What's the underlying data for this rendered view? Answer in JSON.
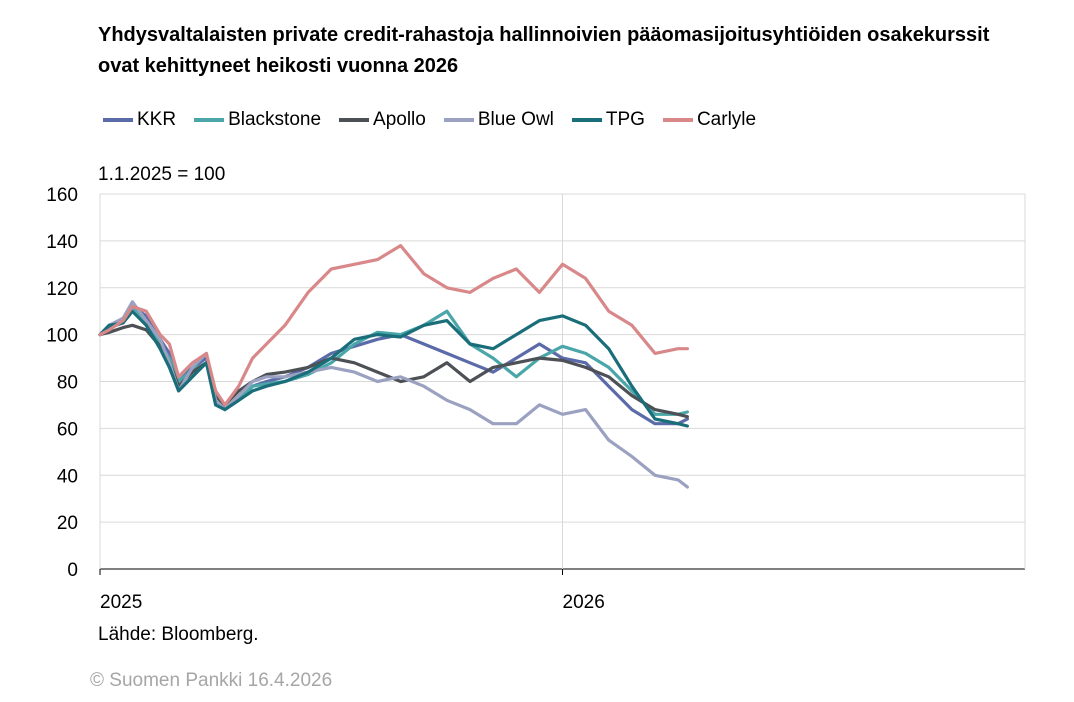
{
  "chart_data": {
    "type": "line",
    "title": "Yhdysvaltalaisten private credit-rahastoja hallinnoivien pääomasijoitusyhtiöiden osakekurssit ovat kehittyneet heikosti vuonna 2026",
    "ylabel": "1.1.2025 = 100",
    "xlabel": "",
    "ylim": [
      0,
      160
    ],
    "yticks": [
      0,
      20,
      40,
      60,
      80,
      100,
      120,
      140,
      160
    ],
    "x_tick_labels": [
      "2025",
      "2026"
    ],
    "x_range_years": [
      2025.0,
      2027.0
    ],
    "grid": true,
    "legend_position": "top",
    "source": "Lähde: Bloomberg.",
    "copyright": "© Suomen Pankki 16.4.2026",
    "series": [
      {
        "name": "KKR",
        "color": "#5b6aa8",
        "x": [
          2025.0,
          2025.02,
          2025.05,
          2025.07,
          2025.1,
          2025.13,
          2025.15,
          2025.17,
          2025.2,
          2025.23,
          2025.25,
          2025.27,
          2025.3,
          2025.33,
          2025.36,
          2025.4,
          2025.45,
          2025.5,
          2025.55,
          2025.6,
          2025.65,
          2025.7,
          2025.75,
          2025.8,
          2025.85,
          2025.9,
          2025.95,
          2026.0,
          2026.05,
          2026.1,
          2026.15,
          2026.2,
          2026.25,
          2026.27
        ],
        "y": [
          100,
          103,
          105,
          112,
          108,
          98,
          92,
          80,
          86,
          90,
          75,
          68,
          72,
          78,
          80,
          82,
          86,
          92,
          95,
          98,
          100,
          96,
          92,
          88,
          84,
          90,
          96,
          90,
          88,
          78,
          68,
          62,
          62,
          64
        ]
      },
      {
        "name": "Blackstone",
        "color": "#4aa6a8",
        "x": [
          2025.0,
          2025.02,
          2025.05,
          2025.07,
          2025.1,
          2025.13,
          2025.15,
          2025.17,
          2025.2,
          2025.23,
          2025.25,
          2025.27,
          2025.3,
          2025.33,
          2025.36,
          2025.4,
          2025.45,
          2025.5,
          2025.55,
          2025.6,
          2025.65,
          2025.7,
          2025.75,
          2025.8,
          2025.85,
          2025.9,
          2025.95,
          2026.0,
          2026.05,
          2026.1,
          2026.15,
          2026.2,
          2026.25,
          2026.27
        ],
        "y": [
          100,
          104,
          106,
          112,
          106,
          96,
          90,
          80,
          85,
          88,
          72,
          68,
          72,
          78,
          79,
          80,
          83,
          88,
          96,
          101,
          100,
          104,
          110,
          96,
          90,
          82,
          90,
          95,
          92,
          86,
          76,
          66,
          66,
          67
        ]
      },
      {
        "name": "Apollo",
        "color": "#4d5156",
        "x": [
          2025.0,
          2025.02,
          2025.05,
          2025.07,
          2025.1,
          2025.13,
          2025.15,
          2025.17,
          2025.2,
          2025.23,
          2025.25,
          2025.27,
          2025.3,
          2025.33,
          2025.36,
          2025.4,
          2025.45,
          2025.5,
          2025.55,
          2025.6,
          2025.65,
          2025.7,
          2025.75,
          2025.8,
          2025.85,
          2025.9,
          2025.95,
          2026.0,
          2026.05,
          2026.1,
          2026.15,
          2026.2,
          2026.25,
          2026.27
        ],
        "y": [
          100,
          101,
          103,
          104,
          102,
          95,
          88,
          78,
          84,
          88,
          74,
          70,
          76,
          80,
          83,
          84,
          86,
          90,
          88,
          84,
          80,
          82,
          88,
          80,
          86,
          88,
          90,
          89,
          86,
          82,
          74,
          68,
          66,
          65
        ]
      },
      {
        "name": "Blue Owl",
        "color": "#9ba1c0",
        "x": [
          2025.0,
          2025.02,
          2025.05,
          2025.07,
          2025.1,
          2025.13,
          2025.15,
          2025.17,
          2025.2,
          2025.23,
          2025.25,
          2025.27,
          2025.3,
          2025.33,
          2025.36,
          2025.4,
          2025.45,
          2025.5,
          2025.55,
          2025.6,
          2025.65,
          2025.7,
          2025.75,
          2025.8,
          2025.85,
          2025.9,
          2025.95,
          2026.0,
          2026.05,
          2026.1,
          2026.15,
          2026.2,
          2026.25,
          2026.27
        ],
        "y": [
          100,
          104,
          107,
          114,
          106,
          98,
          88,
          76,
          86,
          92,
          72,
          68,
          74,
          80,
          82,
          82,
          84,
          86,
          84,
          80,
          82,
          78,
          72,
          68,
          62,
          62,
          70,
          66,
          68,
          55,
          48,
          40,
          38,
          35
        ]
      },
      {
        "name": "TPG",
        "color": "#1a6e7a",
        "x": [
          2025.0,
          2025.02,
          2025.05,
          2025.07,
          2025.1,
          2025.13,
          2025.15,
          2025.17,
          2025.2,
          2025.23,
          2025.25,
          2025.27,
          2025.3,
          2025.33,
          2025.36,
          2025.4,
          2025.45,
          2025.5,
          2025.55,
          2025.6,
          2025.65,
          2025.7,
          2025.75,
          2025.8,
          2025.85,
          2025.9,
          2025.95,
          2026.0,
          2026.05,
          2026.1,
          2026.15,
          2026.2,
          2026.25,
          2026.27
        ],
        "y": [
          100,
          104,
          105,
          110,
          104,
          94,
          86,
          76,
          82,
          88,
          70,
          68,
          72,
          76,
          78,
          80,
          84,
          90,
          98,
          100,
          99,
          104,
          106,
          96,
          94,
          100,
          106,
          108,
          104,
          94,
          78,
          64,
          62,
          61
        ]
      },
      {
        "name": "Carlyle",
        "color": "#d9888a",
        "x": [
          2025.0,
          2025.02,
          2025.05,
          2025.07,
          2025.1,
          2025.13,
          2025.15,
          2025.17,
          2025.2,
          2025.23,
          2025.25,
          2025.27,
          2025.3,
          2025.33,
          2025.36,
          2025.4,
          2025.45,
          2025.5,
          2025.55,
          2025.6,
          2025.65,
          2025.7,
          2025.75,
          2025.8,
          2025.85,
          2025.9,
          2025.95,
          2026.0,
          2026.05,
          2026.1,
          2026.15,
          2026.2,
          2026.25,
          2026.27
        ],
        "y": [
          100,
          102,
          106,
          112,
          110,
          100,
          96,
          82,
          88,
          92,
          76,
          70,
          78,
          90,
          96,
          104,
          118,
          128,
          130,
          132,
          138,
          126,
          120,
          118,
          124,
          128,
          118,
          130,
          124,
          110,
          104,
          92,
          94,
          94
        ]
      }
    ]
  }
}
